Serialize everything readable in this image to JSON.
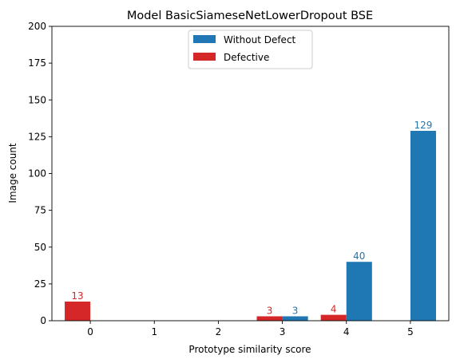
{
  "chart_data": {
    "type": "bar",
    "title": "Model BasicSiameseNetLowerDropout BSE",
    "xlabel": "Prototype similarity score",
    "ylabel": "Image count",
    "categories": [
      0,
      1,
      2,
      3,
      4,
      5
    ],
    "ylim": [
      0,
      200
    ],
    "yticks": [
      0,
      25,
      50,
      75,
      100,
      125,
      150,
      175,
      200
    ],
    "xlim": [
      -0.6,
      5.6
    ],
    "bar_width": 0.4,
    "grid": false,
    "legend_position": "top-center",
    "series": [
      {
        "name": "Without Defect",
        "color": "#1f77b4",
        "offset": 0.2,
        "values": [
          0,
          0,
          0,
          3,
          40,
          129
        ],
        "labels": [
          "",
          "",
          "",
          "3",
          "40",
          "129"
        ]
      },
      {
        "name": "Defective",
        "color": "#d62728",
        "offset": -0.2,
        "values": [
          13,
          0,
          0,
          3,
          4,
          0
        ],
        "labels": [
          "13",
          "",
          "",
          "3",
          "4",
          ""
        ]
      }
    ]
  }
}
